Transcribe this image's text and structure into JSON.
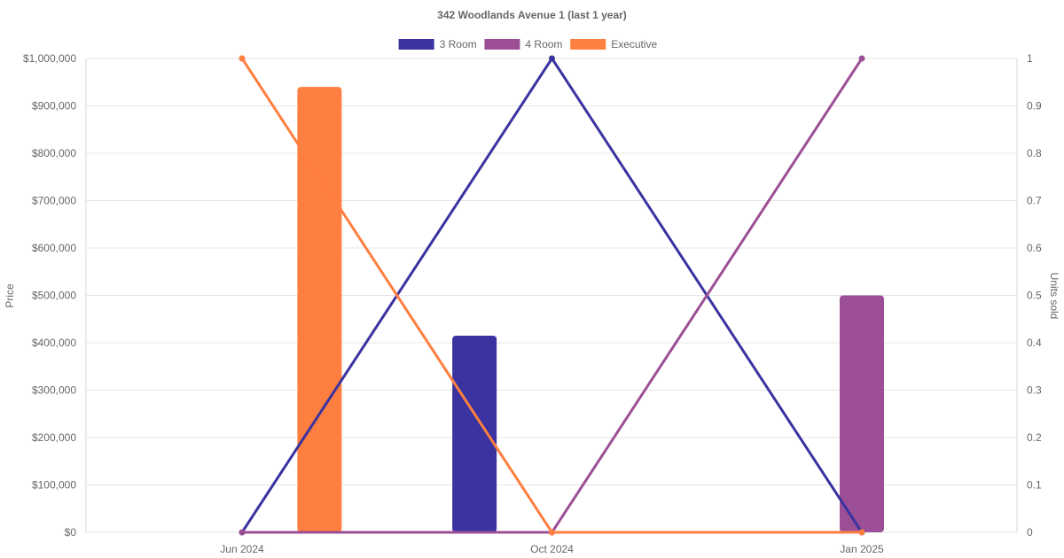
{
  "chart_data": {
    "type": "bar",
    "title": "342 Woodlands Avenue 1 (last 1 year)",
    "categories": [
      "Jun 2024",
      "Oct 2024",
      "Jan 2025"
    ],
    "legend_position": "top",
    "grid": true,
    "y_left": {
      "label": "Price",
      "ylim": [
        0,
        1000000
      ],
      "ticks": [
        "$0",
        "$100,000",
        "$200,000",
        "$300,000",
        "$400,000",
        "$500,000",
        "$600,000",
        "$700,000",
        "$800,000",
        "$900,000",
        "$1,000,000"
      ]
    },
    "y_right": {
      "label": "Units sold",
      "ylim": [
        0,
        1
      ],
      "ticks": [
        "0",
        "0.1",
        "0.2",
        "0.3",
        "0.4",
        "0.5",
        "0.6",
        "0.7",
        "0.8",
        "0.9",
        "1"
      ]
    },
    "series": [
      {
        "name": "3 Room",
        "color": "#3a33a0",
        "price": [
          null,
          415000,
          null
        ],
        "units": [
          0,
          1,
          0
        ]
      },
      {
        "name": "4 Room",
        "color": "#9c4f96",
        "price": [
          null,
          null,
          500000
        ],
        "units": [
          0,
          0,
          1
        ]
      },
      {
        "name": "Executive",
        "color": "#ff7f40",
        "price": [
          940000,
          null,
          null
        ],
        "units": [
          1,
          0,
          0
        ]
      }
    ]
  }
}
